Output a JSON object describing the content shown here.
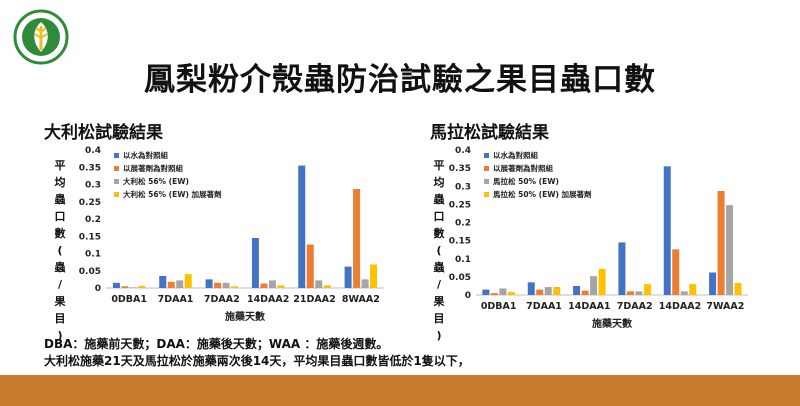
{
  "slide": {
    "title": "鳳梨粉介殼蟲防治試驗之果目蟲口數",
    "colors": {
      "accent_bar": "#c87a2c",
      "logo_green": "#2e8b3a",
      "logo_yellow": "#e8c020"
    },
    "notes": [
      "DBA：施藥前天數；DAA：施藥後天數；WAA ：施藥後週數。",
      "大利松施藥21天及馬拉松於施藥兩次後14天，平均果目蟲口數皆低於1隻以下，"
    ],
    "logo": {
      "icon": "agency-seal-icon"
    }
  },
  "chart_data": [
    {
      "type": "bar",
      "section_title": "大利松試驗結果",
      "categories": [
        "0DBA1",
        "7DAA1",
        "7DAA2",
        "14DAA2",
        "21DAA2",
        "8WAA2"
      ],
      "xlabel": "施藥天數",
      "ylabel": "平均蟲口數(蟲/果目)",
      "ylim": [
        0,
        0.4
      ],
      "yticks": [
        "0",
        "0.05",
        "0.1",
        "0.15",
        "0.2",
        "0.25",
        "0.3",
        "0.35",
        "0.4"
      ],
      "legend_position": "top-left",
      "series": [
        {
          "name": "以水為對照組",
          "color": "#4472c4",
          "values": [
            0.015,
            0.035,
            0.025,
            0.145,
            0.355,
            0.062
          ]
        },
        {
          "name": "以展著劑為對照組",
          "color": "#ed7d31",
          "values": [
            0.005,
            0.018,
            0.015,
            0.013,
            0.126,
            0.287
          ]
        },
        {
          "name": "大利松 56% (EW)",
          "color": "#a5a5a5",
          "values": [
            0.002,
            0.022,
            0.015,
            0.022,
            0.022,
            0.025
          ]
        },
        {
          "name": "大利松 56% (EW) 加展著劑",
          "color": "#ffc000",
          "values": [
            0.006,
            0.04,
            0.005,
            0.008,
            0.008,
            0.068
          ]
        }
      ]
    },
    {
      "type": "bar",
      "section_title": "馬拉松試驗結果",
      "categories": [
        "0DBA1",
        "7DAA1",
        "14DAA1",
        "7DAA2",
        "14DAA2",
        "7WAA2"
      ],
      "xlabel": "施藥天數",
      "ylabel": "平均蟲口數(蟲/果目)",
      "ylim": [
        0,
        0.4
      ],
      "yticks": [
        "0",
        "0.05",
        "0.1",
        "0.15",
        "0.2",
        "0.25",
        "0.3",
        "0.35",
        "0.4"
      ],
      "legend_position": "top-left",
      "series": [
        {
          "name": "以水為對照組",
          "color": "#4472c4",
          "values": [
            0.015,
            0.035,
            0.025,
            0.145,
            0.355,
            0.062
          ]
        },
        {
          "name": "以展著劑為對照組",
          "color": "#ed7d31",
          "values": [
            0.005,
            0.015,
            0.012,
            0.01,
            0.126,
            0.287
          ]
        },
        {
          "name": "馬拉松 50% (EW)",
          "color": "#a5a5a5",
          "values": [
            0.018,
            0.022,
            0.052,
            0.01,
            0.01,
            0.248
          ]
        },
        {
          "name": "馬拉松 50% (EW) 加展著劑",
          "color": "#ffc000",
          "values": [
            0.008,
            0.022,
            0.072,
            0.03,
            0.03,
            0.033
          ]
        }
      ]
    }
  ]
}
